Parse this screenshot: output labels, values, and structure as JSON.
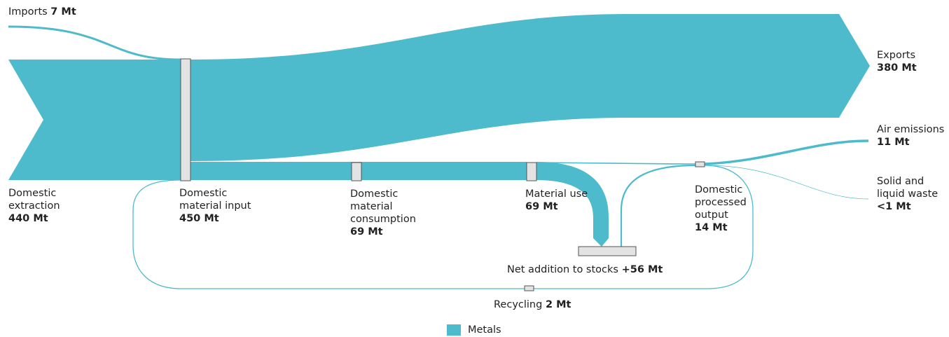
{
  "colors": {
    "flow": "#4dbbcb",
    "node_fill": "#e3e3e3",
    "node_stroke": "#555555",
    "text": "#222222"
  },
  "flows": {
    "imports": {
      "name": "Imports",
      "value": "7 Mt"
    },
    "domestic_extraction": {
      "name": "Domestic\nextraction",
      "value": "440 Mt"
    },
    "domestic_material_input": {
      "name": "Domestic\nmaterial input",
      "value": "450 Mt"
    },
    "domestic_material_consumption": {
      "name": "Domestic\nmaterial\nconsumption",
      "value": "69 Mt"
    },
    "material_use": {
      "name": "Material use",
      "value": "69 Mt"
    },
    "net_addition_to_stocks": {
      "name": "Net addition to stocks",
      "value": "+56 Mt"
    },
    "domestic_processed_output": {
      "name": "Domestic\nprocessed\noutput",
      "value": "14 Mt"
    },
    "recycling": {
      "name": "Recycling",
      "value": "2 Mt"
    },
    "exports": {
      "name": "Exports",
      "value": "380 Mt"
    },
    "air_emissions": {
      "name": "Air emissions",
      "value": "11 Mt"
    },
    "solid_liquid_waste": {
      "name": "Solid and\nliquid waste",
      "value": "<1 Mt"
    }
  },
  "legend": {
    "items": [
      {
        "label": "Metals",
        "color": "#4dbbcb"
      }
    ]
  }
}
